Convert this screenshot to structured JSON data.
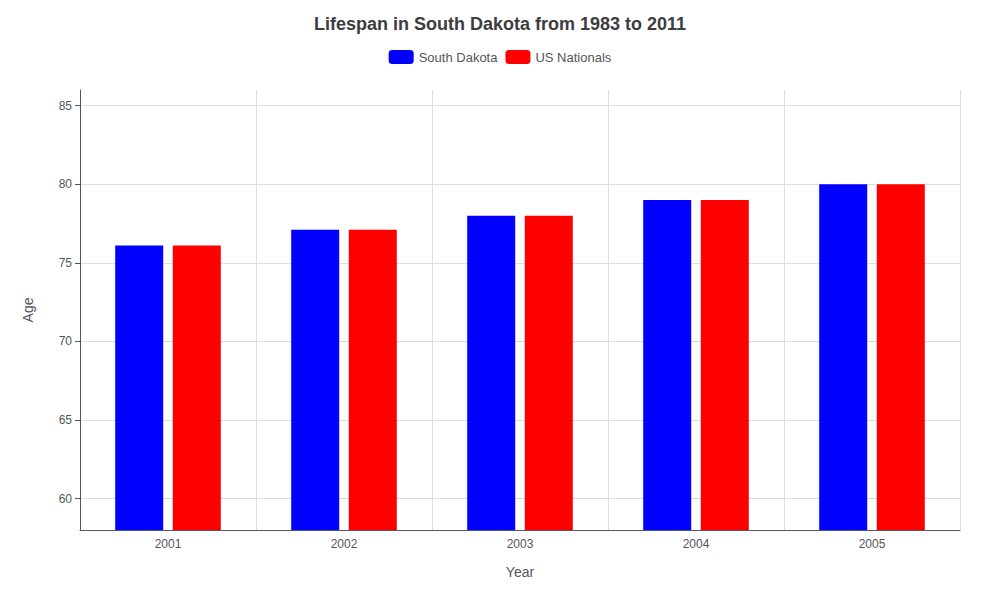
{
  "chart_data": {
    "type": "bar",
    "title": "Lifespan in South Dakota from 1983 to 2011",
    "xlabel": "Year",
    "ylabel": "Age",
    "categories": [
      "2001",
      "2002",
      "2003",
      "2004",
      "2005"
    ],
    "series": [
      {
        "name": "South Dakota",
        "color": "#0000ff",
        "values": [
          76.1,
          77.1,
          78.0,
          79.0,
          80.0
        ]
      },
      {
        "name": "US Nationals",
        "color": "#ff0000",
        "values": [
          76.1,
          77.1,
          78.0,
          79.0,
          80.0
        ]
      }
    ],
    "ylim": [
      58,
      86
    ],
    "yticks": [
      60,
      65,
      70,
      75,
      80,
      85
    ],
    "grid": true,
    "legend": "top"
  }
}
